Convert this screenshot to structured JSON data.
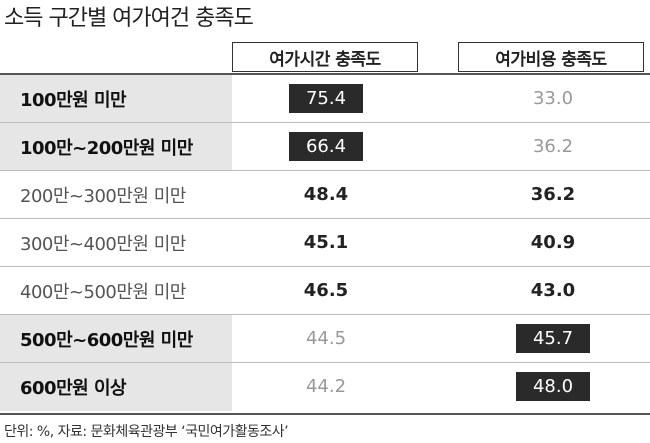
{
  "header": {
    "title": "소득 구간별 여가여건 충족도"
  },
  "table": {
    "columns": [
      "여가시간 충족도",
      "여가비용 충족도"
    ],
    "rows": [
      {
        "label": "100만원 미만",
        "emphasis": true,
        "values": [
          "75.4",
          "33.0"
        ],
        "styles": [
          "highlight",
          "muted"
        ]
      },
      {
        "label": "100만~200만원 미만",
        "emphasis": true,
        "values": [
          "66.4",
          "36.2"
        ],
        "styles": [
          "highlight",
          "muted"
        ]
      },
      {
        "label": "200만~300만원 미만",
        "emphasis": false,
        "values": [
          "48.4",
          "36.2"
        ],
        "styles": [
          "bold",
          "bold"
        ]
      },
      {
        "label": "300만~400만원 미만",
        "emphasis": false,
        "values": [
          "45.1",
          "40.9"
        ],
        "styles": [
          "bold",
          "bold"
        ]
      },
      {
        "label": "400만~500만원 미만",
        "emphasis": false,
        "values": [
          "46.5",
          "43.0"
        ],
        "styles": [
          "bold",
          "bold"
        ]
      },
      {
        "label": "500만~600만원 미만",
        "emphasis": true,
        "values": [
          "44.5",
          "45.7"
        ],
        "styles": [
          "muted",
          "highlight"
        ]
      },
      {
        "label": "600만원 이상",
        "emphasis": true,
        "values": [
          "44.2",
          "48.0"
        ],
        "styles": [
          "muted",
          "highlight"
        ]
      }
    ]
  },
  "footer": {
    "note": "단위: %, 자료: 문화체육관광부 ‘국민여가활동조사’"
  }
}
